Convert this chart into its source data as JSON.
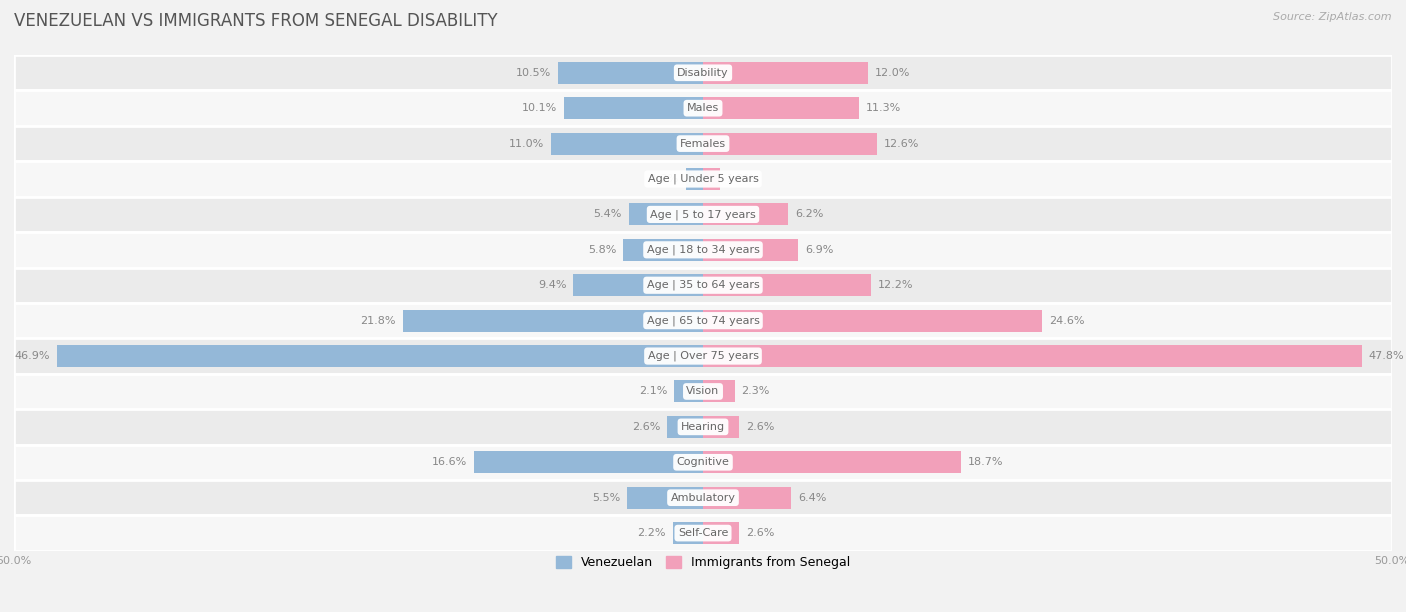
{
  "title": "VENEZUELAN VS IMMIGRANTS FROM SENEGAL DISABILITY",
  "source": "Source: ZipAtlas.com",
  "categories": [
    "Disability",
    "Males",
    "Females",
    "Age | Under 5 years",
    "Age | 5 to 17 years",
    "Age | 18 to 34 years",
    "Age | 35 to 64 years",
    "Age | 65 to 74 years",
    "Age | Over 75 years",
    "Vision",
    "Hearing",
    "Cognitive",
    "Ambulatory",
    "Self-Care"
  ],
  "venezuelan": [
    10.5,
    10.1,
    11.0,
    1.2,
    5.4,
    5.8,
    9.4,
    21.8,
    46.9,
    2.1,
    2.6,
    16.6,
    5.5,
    2.2
  ],
  "senegal": [
    12.0,
    11.3,
    12.6,
    1.2,
    6.2,
    6.9,
    12.2,
    24.6,
    47.8,
    2.3,
    2.6,
    18.7,
    6.4,
    2.6
  ],
  "venezuelan_color": "#94b8d8",
  "senegal_color": "#f2a0ba",
  "bar_height": 0.62,
  "xlim": 50.0,
  "background_color": "#f2f2f2",
  "row_colors": [
    "#ebebeb",
    "#f7f7f7"
  ],
  "title_fontsize": 12,
  "label_fontsize": 8,
  "value_fontsize": 8,
  "legend_fontsize": 9,
  "axis_label_color": "#999999",
  "value_color": "#888888",
  "title_color": "#555555",
  "source_color": "#aaaaaa"
}
